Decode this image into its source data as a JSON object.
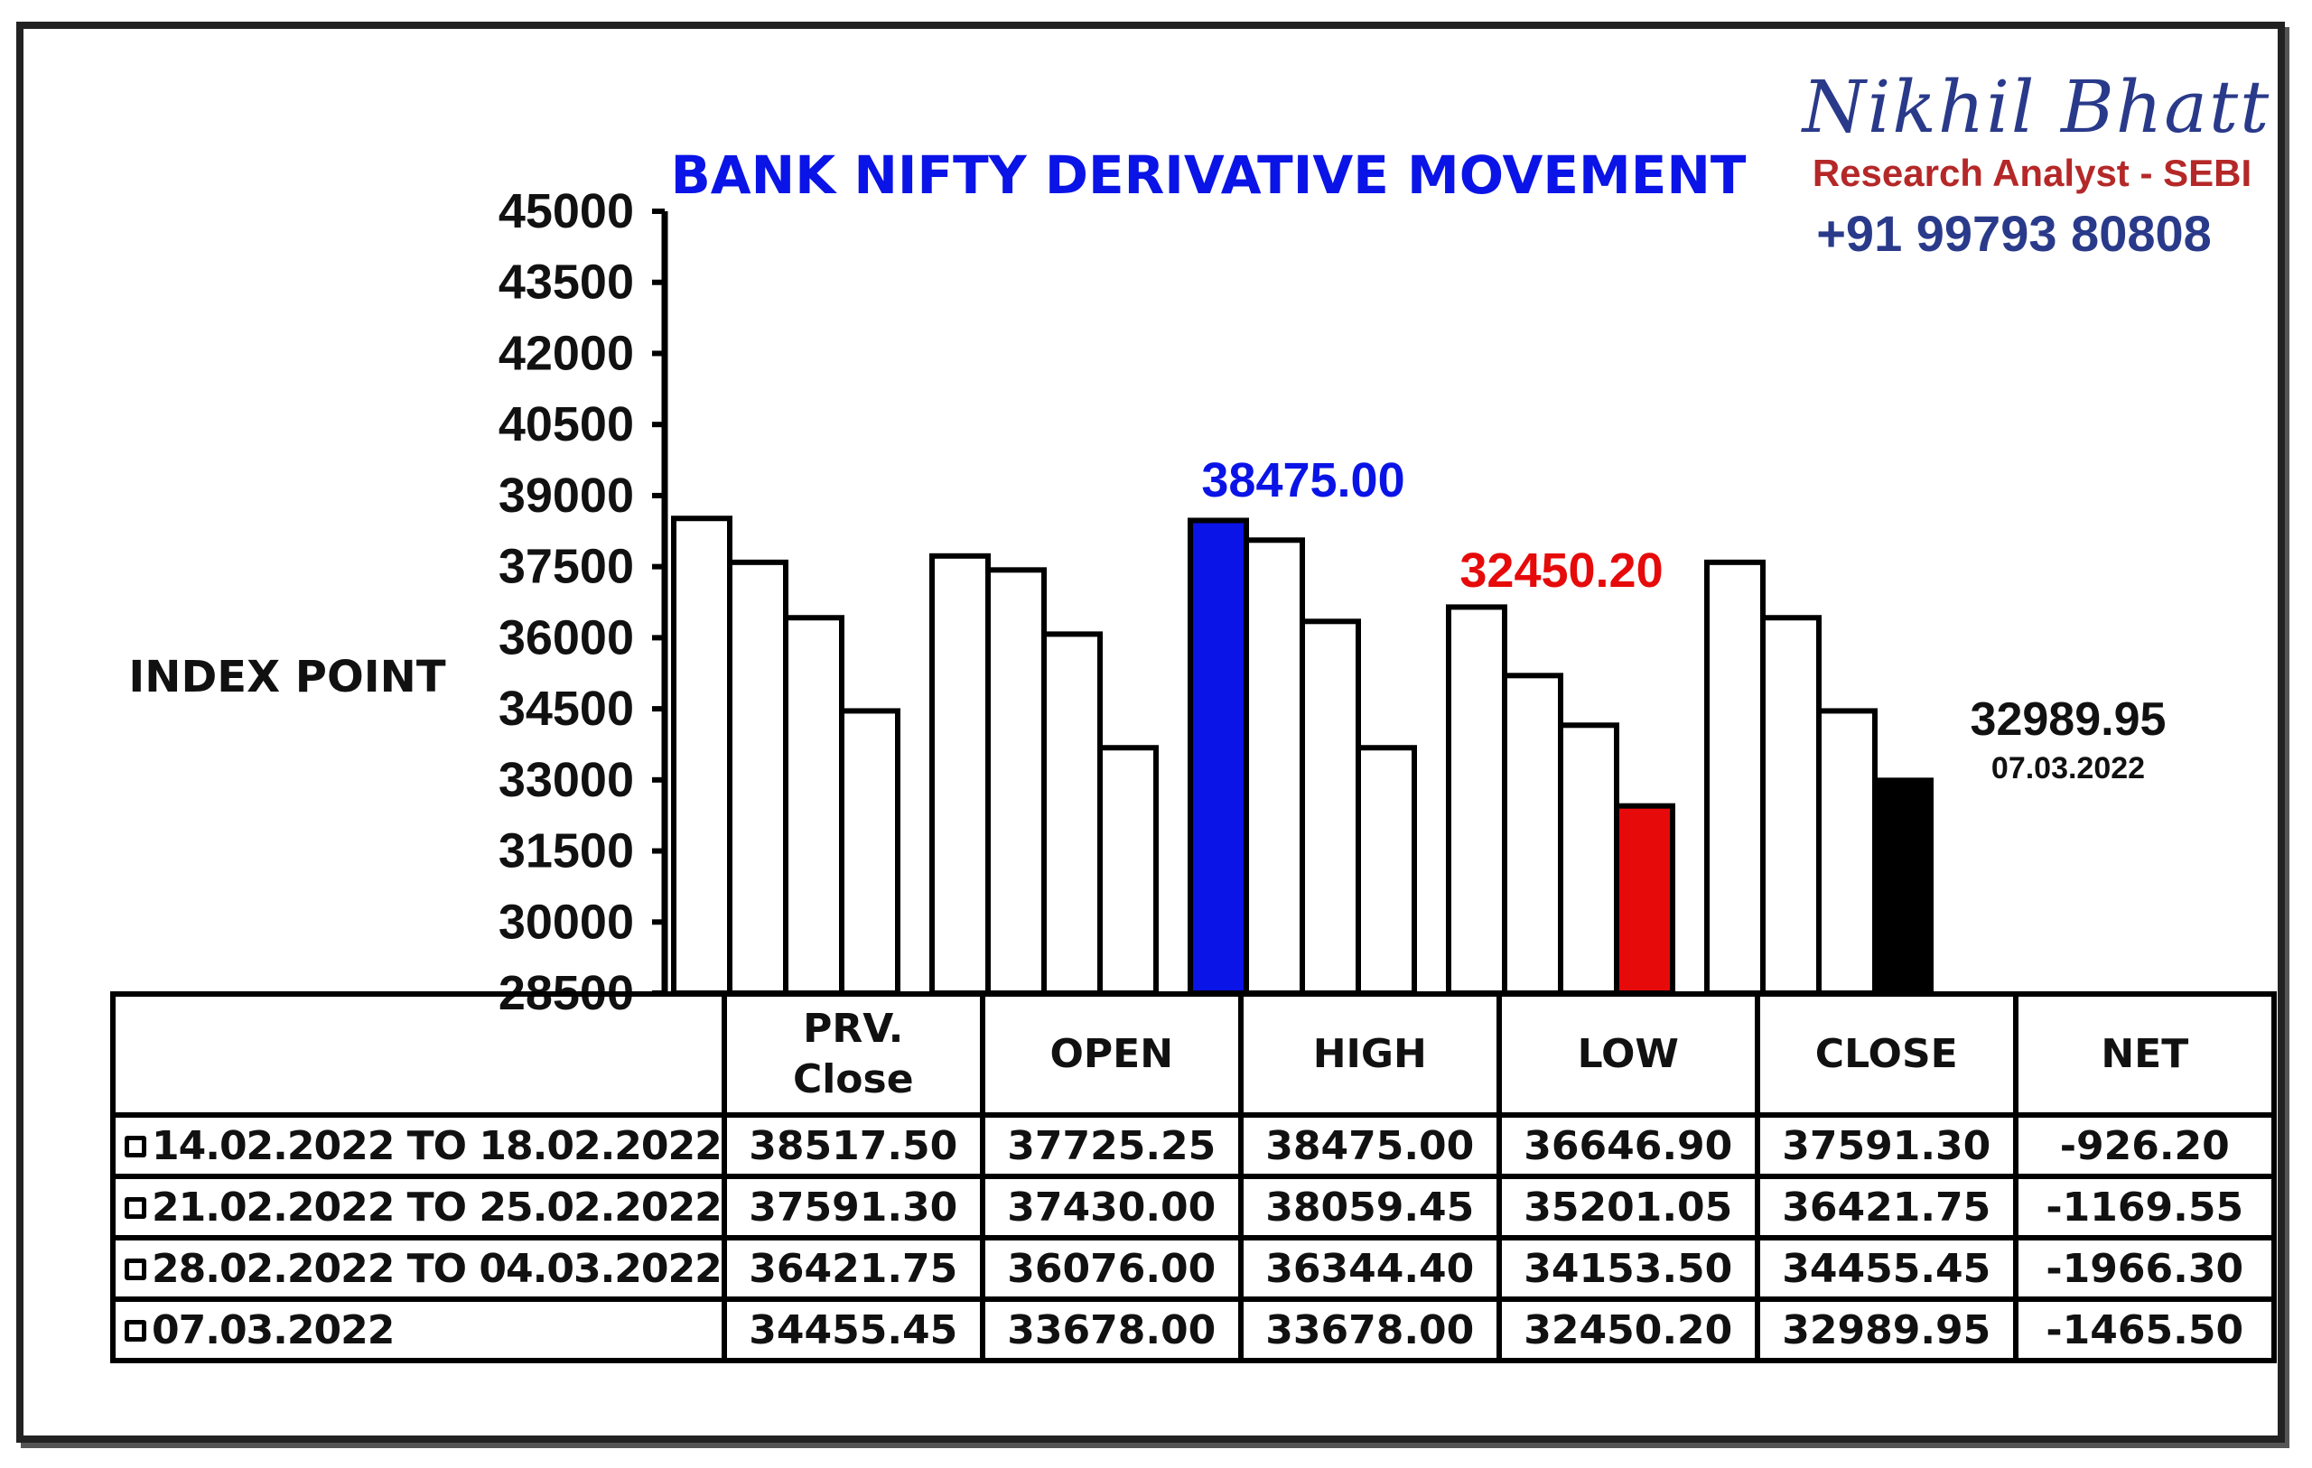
{
  "chart_data": {
    "type": "bar",
    "title": "BANK NIFTY DERIVATIVE MOVEMENT",
    "ylabel": "INDEX POINT",
    "ylim": [
      28500,
      45000
    ],
    "yticks": [
      "45000",
      "43500",
      "42000",
      "40500",
      "39000",
      "37500",
      "36000",
      "34500",
      "33000",
      "31500",
      "30000",
      "28500"
    ],
    "categories": [
      "PRV. Close",
      "OPEN",
      "HIGH",
      "LOW",
      "CLOSE"
    ],
    "series": [
      {
        "name": "14.02.2022 TO 18.02.2022",
        "values": [
          38517.5,
          37725.25,
          38475.0,
          36646.9,
          37591.3
        ]
      },
      {
        "name": "21.02.2022 TO 25.02.2022",
        "values": [
          37591.3,
          37430.0,
          38059.45,
          35201.05,
          36421.75
        ]
      },
      {
        "name": "28.02.2022 TO 04.03.2022",
        "values": [
          36421.75,
          36076.0,
          36344.4,
          34153.5,
          34455.45
        ]
      },
      {
        "name": "07.03.2022",
        "values": [
          34455.45,
          33678.0,
          33678.0,
          32450.2,
          32989.95
        ]
      }
    ],
    "highlights": [
      {
        "category": 2,
        "series": 0,
        "color": "#0a14e6"
      },
      {
        "category": 3,
        "series": 3,
        "color": "#e60a0a"
      },
      {
        "category": 4,
        "series": 3,
        "color": "#000000"
      }
    ],
    "annotations": {
      "high": {
        "text": "38475.00",
        "color": "#0a14e6"
      },
      "low": {
        "text": "32450.20",
        "color": "#e60a0a"
      },
      "close_value": "32989.95",
      "close_date": "07.03.2022"
    }
  },
  "branding": {
    "name": "Nikhil Bhatt",
    "role": "Research Analyst - SEBI",
    "phone": "+91 99793 80808"
  },
  "table": {
    "headers": [
      "PRV.",
      "Close",
      "OPEN",
      "HIGH",
      "LOW",
      "CLOSE",
      "NET"
    ],
    "rows": [
      {
        "period": "14.02.2022 TO 18.02.2022",
        "values": [
          "38517.50",
          "37725.25",
          "38475.00",
          "36646.90",
          "37591.30",
          "-926.20"
        ]
      },
      {
        "period": "21.02.2022 TO 25.02.2022",
        "values": [
          "37591.30",
          "37430.00",
          "38059.45",
          "35201.05",
          "36421.75",
          "-1169.55"
        ]
      },
      {
        "period": "28.02.2022 TO 04.03.2022",
        "values": [
          "36421.75",
          "36076.00",
          "36344.40",
          "34153.50",
          "34455.45",
          "-1966.30"
        ]
      },
      {
        "period": "07.03.2022",
        "values": [
          "34455.45",
          "33678.00",
          "33678.00",
          "32450.20",
          "32989.95",
          "-1465.50"
        ]
      }
    ]
  }
}
